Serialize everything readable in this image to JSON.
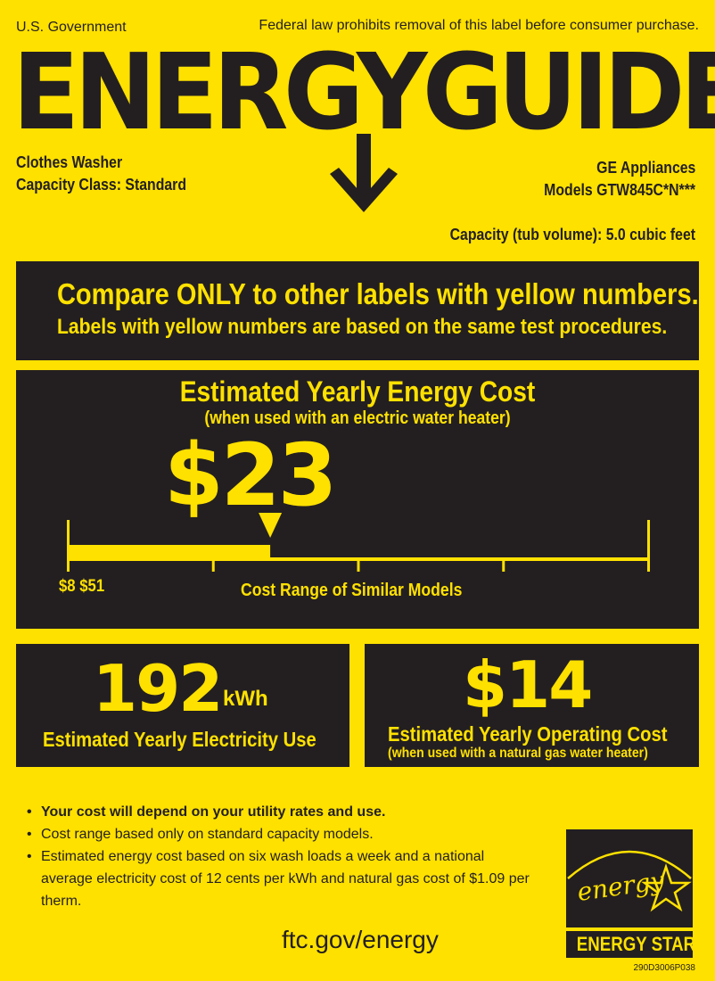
{
  "header": {
    "government": "U.S. Government",
    "notice": "Federal law prohibits removal of this label before consumer purchase.",
    "title": "ENERGYGUIDE"
  },
  "appliance": {
    "type": "Clothes Washer",
    "capacity_class": "Capacity Class: Standard",
    "brand": "GE Appliances",
    "models": "Models GTW845C*N***",
    "capacity": "Capacity (tub volume): 5.0 cubic feet"
  },
  "compare": {
    "headline": "Compare ONLY to other labels with yellow numbers.",
    "subline": "Labels with yellow numbers are based on the same test procedures."
  },
  "yearly_cost": {
    "title": "Estimated Yearly Energy Cost",
    "subtitle": "(when used with an electric water heater)",
    "value": "$23",
    "amount": 23,
    "range_min": 8,
    "range_max": 51,
    "range_label": "$8 $51",
    "range_caption": "Cost Range of Similar Models"
  },
  "electricity": {
    "value": "192",
    "unit": "kWh",
    "label": "Estimated Yearly Electricity Use"
  },
  "operating": {
    "value": "$14",
    "label": "Estimated Yearly Operating Cost",
    "sublabel": "(when used with a natural gas water heater)"
  },
  "notes": [
    "Your cost will depend on your utility rates and use.",
    "Cost range based only on standard capacity models.",
    "Estimated energy cost based on six wash loads a week and a national average electricity cost of 12 cents per kWh and natural gas cost of $1.09 per therm."
  ],
  "footer": {
    "url": "ftc.gov/energy",
    "logo_script": "energy",
    "logo_text": "ENERGY STAR",
    "code": "290D3006P038"
  },
  "colors": {
    "yellow": "#ffe100",
    "dark": "#231f20"
  }
}
